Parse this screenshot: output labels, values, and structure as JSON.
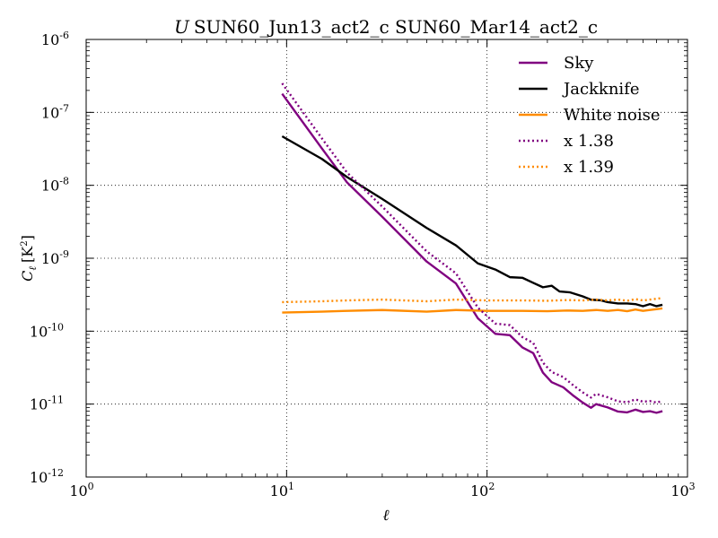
{
  "chart_data": {
    "type": "line",
    "title_italic": "U",
    "title": "SUN60_Jun13_act2_c SUN60_Mar14_act2_c",
    "xlabel": "ℓ",
    "ylabel_main": "C",
    "ylabel_sub": "ℓ",
    "ylabel_units": "[K",
    "ylabel_units_sup": "2",
    "ylabel_units_close": "]",
    "x_scale": "log",
    "y_scale": "log",
    "xlim": [
      1,
      1000
    ],
    "ylim": [
      1e-12,
      1e-06
    ],
    "grid": true,
    "legend_position": "top-right",
    "x_ticks": [
      {
        "value": 1,
        "base": "10",
        "exp": "0"
      },
      {
        "value": 10,
        "base": "10",
        "exp": "1"
      },
      {
        "value": 100,
        "base": "10",
        "exp": "2"
      },
      {
        "value": 1000,
        "base": "10",
        "exp": "3"
      }
    ],
    "y_ticks": [
      {
        "value": 1e-12,
        "base": "10",
        "exp": "-12"
      },
      {
        "value": 1e-11,
        "base": "10",
        "exp": "-11"
      },
      {
        "value": 1e-10,
        "base": "10",
        "exp": "-10"
      },
      {
        "value": 1e-09,
        "base": "10",
        "exp": "-9"
      },
      {
        "value": 1e-08,
        "base": "10",
        "exp": "-8"
      },
      {
        "value": 1e-07,
        "base": "10",
        "exp": "-7"
      },
      {
        "value": 1e-06,
        "base": "10",
        "exp": "-6"
      }
    ],
    "series": [
      {
        "name": "Sky",
        "color": "#800080",
        "dash": "solid",
        "points": [
          [
            9.5,
            1.8e-07
          ],
          [
            15,
            3.2e-08
          ],
          [
            20,
            1.1e-08
          ],
          [
            30,
            3.7e-09
          ],
          [
            50,
            9e-10
          ],
          [
            70,
            4.5e-10
          ],
          [
            90,
            1.5e-10
          ],
          [
            110,
            9.2e-11
          ],
          [
            130,
            8.8e-11
          ],
          [
            150,
            6e-11
          ],
          [
            170,
            5e-11
          ],
          [
            190,
            2.7e-11
          ],
          [
            210,
            2e-11
          ],
          [
            240,
            1.7e-11
          ],
          [
            270,
            1.3e-11
          ],
          [
            300,
            1.05e-11
          ],
          [
            330,
            8.9e-12
          ],
          [
            350,
            1e-11
          ],
          [
            400,
            9e-12
          ],
          [
            450,
            7.9e-12
          ],
          [
            500,
            7.7e-12
          ],
          [
            550,
            8.4e-12
          ],
          [
            600,
            7.8e-12
          ],
          [
            650,
            8e-12
          ],
          [
            700,
            7.6e-12
          ],
          [
            750,
            8e-12
          ]
        ]
      },
      {
        "name": "Jackknife",
        "color": "#000000",
        "dash": "solid",
        "points": [
          [
            9.5,
            4.7e-08
          ],
          [
            15,
            2.3e-08
          ],
          [
            20,
            1.3e-08
          ],
          [
            30,
            6.5e-09
          ],
          [
            50,
            2.6e-09
          ],
          [
            70,
            1.5e-09
          ],
          [
            90,
            8.5e-10
          ],
          [
            110,
            7e-10
          ],
          [
            130,
            5.5e-10
          ],
          [
            150,
            5.4e-10
          ],
          [
            170,
            4.6e-10
          ],
          [
            190,
            4e-10
          ],
          [
            210,
            4.2e-10
          ],
          [
            230,
            3.5e-10
          ],
          [
            260,
            3.4e-10
          ],
          [
            300,
            3e-10
          ],
          [
            330,
            2.7e-10
          ],
          [
            370,
            2.65e-10
          ],
          [
            400,
            2.5e-10
          ],
          [
            450,
            2.4e-10
          ],
          [
            500,
            2.4e-10
          ],
          [
            550,
            2.35e-10
          ],
          [
            600,
            2.2e-10
          ],
          [
            650,
            2.35e-10
          ],
          [
            700,
            2.2e-10
          ],
          [
            750,
            2.3e-10
          ]
        ]
      },
      {
        "name": "White noise",
        "color": "#ff8c00",
        "dash": "solid",
        "points": [
          [
            9.5,
            1.8e-10
          ],
          [
            15,
            1.85e-10
          ],
          [
            20,
            1.9e-10
          ],
          [
            30,
            1.95e-10
          ],
          [
            50,
            1.85e-10
          ],
          [
            70,
            1.95e-10
          ],
          [
            100,
            1.9e-10
          ],
          [
            150,
            1.9e-10
          ],
          [
            200,
            1.88e-10
          ],
          [
            250,
            1.92e-10
          ],
          [
            300,
            1.9e-10
          ],
          [
            350,
            1.95e-10
          ],
          [
            400,
            1.9e-10
          ],
          [
            450,
            1.95e-10
          ],
          [
            500,
            1.88e-10
          ],
          [
            550,
            1.98e-10
          ],
          [
            600,
            1.9e-10
          ],
          [
            650,
            1.95e-10
          ],
          [
            700,
            2e-10
          ],
          [
            750,
            2.05e-10
          ]
        ]
      },
      {
        "name": "x 1.38",
        "color": "#800080",
        "dash": "dotted",
        "points": [
          [
            9.5,
            2.5e-07
          ],
          [
            15,
            4.4e-08
          ],
          [
            20,
            1.5e-08
          ],
          [
            30,
            5.1e-09
          ],
          [
            50,
            1.24e-09
          ],
          [
            70,
            6.2e-10
          ],
          [
            90,
            2.1e-10
          ],
          [
            110,
            1.27e-10
          ],
          [
            130,
            1.21e-10
          ],
          [
            150,
            8.3e-11
          ],
          [
            170,
            6.9e-11
          ],
          [
            190,
            3.7e-11
          ],
          [
            210,
            2.76e-11
          ],
          [
            240,
            2.35e-11
          ],
          [
            270,
            1.8e-11
          ],
          [
            300,
            1.45e-11
          ],
          [
            330,
            1.23e-11
          ],
          [
            350,
            1.38e-11
          ],
          [
            400,
            1.24e-11
          ],
          [
            450,
            1.09e-11
          ],
          [
            500,
            1.06e-11
          ],
          [
            550,
            1.16e-11
          ],
          [
            600,
            1.08e-11
          ],
          [
            650,
            1.1e-11
          ],
          [
            700,
            1.05e-11
          ],
          [
            750,
            1.1e-11
          ]
        ]
      },
      {
        "name": "x 1.39",
        "color": "#ff8c00",
        "dash": "dotted",
        "points": [
          [
            9.5,
            2.5e-10
          ],
          [
            15,
            2.57e-10
          ],
          [
            20,
            2.64e-10
          ],
          [
            30,
            2.71e-10
          ],
          [
            50,
            2.57e-10
          ],
          [
            70,
            2.71e-10
          ],
          [
            100,
            2.64e-10
          ],
          [
            150,
            2.64e-10
          ],
          [
            200,
            2.61e-10
          ],
          [
            250,
            2.67e-10
          ],
          [
            300,
            2.64e-10
          ],
          [
            350,
            2.71e-10
          ],
          [
            400,
            2.64e-10
          ],
          [
            450,
            2.71e-10
          ],
          [
            500,
            2.61e-10
          ],
          [
            550,
            2.75e-10
          ],
          [
            600,
            2.64e-10
          ],
          [
            650,
            2.71e-10
          ],
          [
            700,
            2.78e-10
          ],
          [
            750,
            2.85e-10
          ]
        ]
      }
    ]
  }
}
